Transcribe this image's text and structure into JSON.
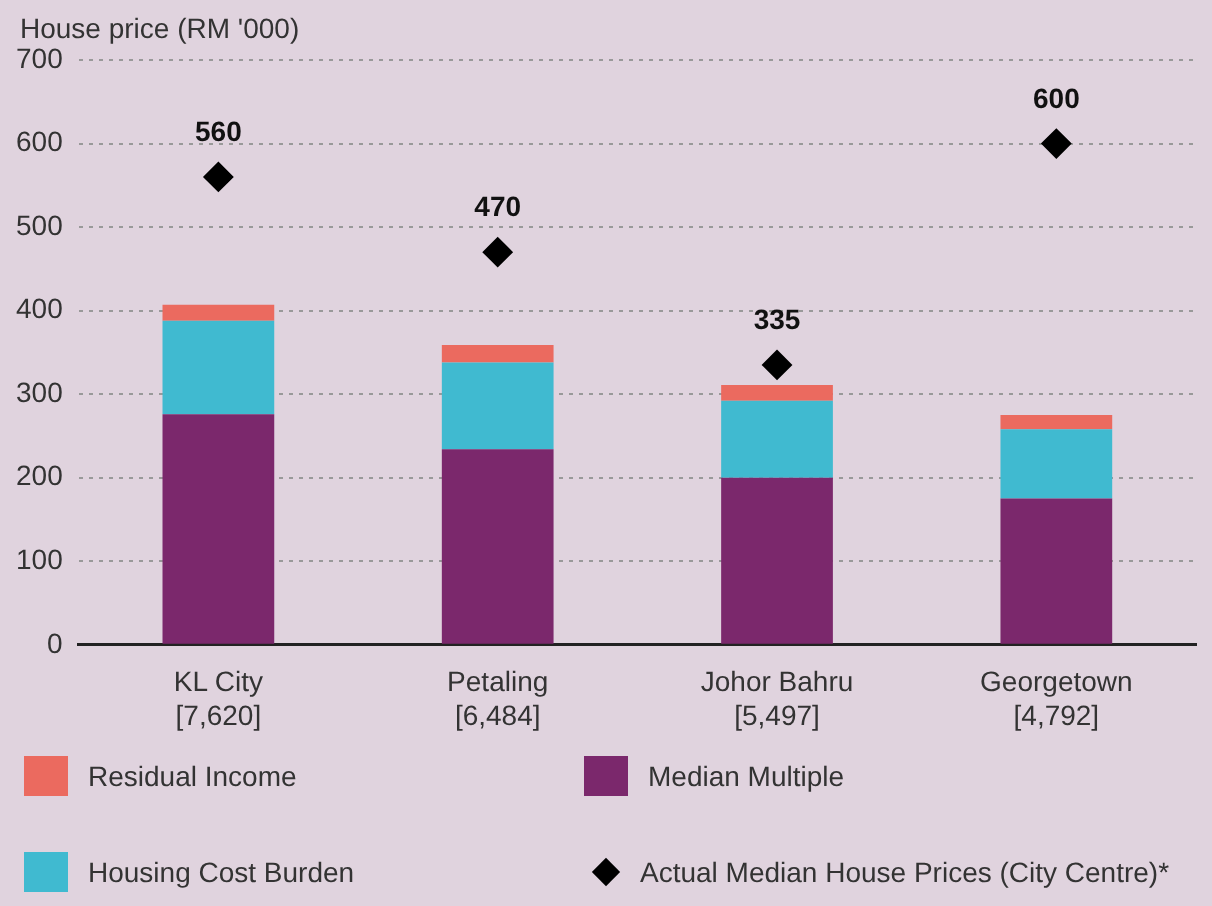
{
  "chart_data": {
    "type": "bar",
    "stacked": true,
    "ylabel": "House price (RM '000)",
    "categories": [
      "KL City\n[7,620]",
      "Petaling\n[6,484]",
      "Johor Bahru\n[5,497]",
      "Georgetown\n[4,792]"
    ],
    "series": [
      {
        "name": "Median Multiple",
        "color": "#7b286c",
        "values": [
          276,
          234,
          200,
          175
        ]
      },
      {
        "name": "Housing Cost Burden",
        "color": "#40bad0",
        "values": [
          112,
          104,
          92,
          83
        ]
      },
      {
        "name": "Residual Income",
        "color": "#eb6a5f",
        "values": [
          19,
          21,
          19,
          17
        ]
      },
      {
        "name": "Actual Median House Prices (City Centre)*",
        "type": "scatter",
        "color": "#000000",
        "marker": "diamond",
        "x": [
          "KL City\n[7,620]",
          "Petaling\n[6,484]",
          "Johor Bahru\n[5,497]",
          "Georgetown\n[4,792]"
        ],
        "values": [
          560,
          470,
          335,
          600
        ],
        "value_labels": [
          "560",
          "470",
          "335",
          "600"
        ]
      }
    ],
    "ylim": [
      0,
      700
    ],
    "yticks": [
      0,
      100,
      200,
      300,
      400,
      500,
      600,
      700
    ],
    "grid": "y",
    "legend": "bottom"
  }
}
